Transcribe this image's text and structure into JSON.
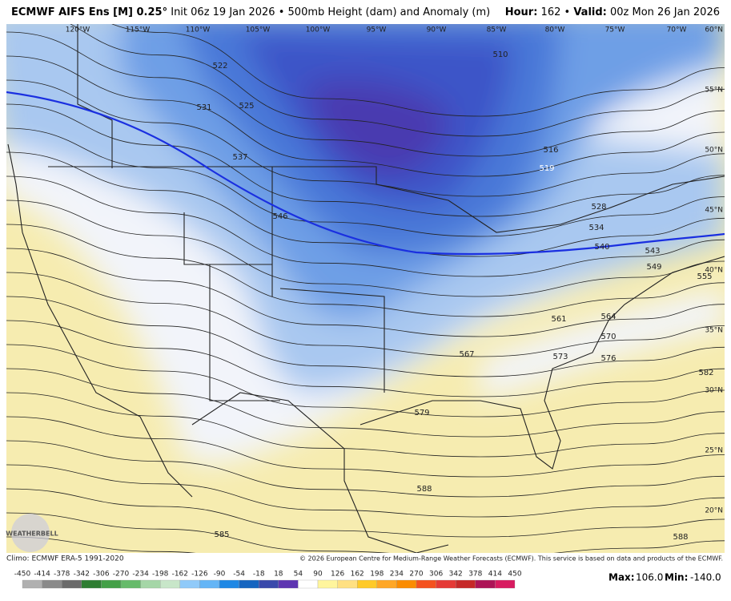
{
  "header": {
    "title": "ECMWF AIFS Ens [M] 0.25°",
    "init": "Init 06z 19 Jan 2026",
    "separator": "•",
    "product": "500mb Height (dam) and Anomaly (m)",
    "hour_label": "Hour:",
    "hour": "162",
    "valid_label": "Valid:",
    "valid": "00z Mon 26 Jan 2026"
  },
  "map": {
    "longitude_labels": [
      "120°W",
      "115°W",
      "110°W",
      "105°W",
      "100°W",
      "95°W",
      "90°W",
      "85°W",
      "80°W",
      "75°W",
      "70°W"
    ],
    "latitude_labels": [
      "60°N",
      "55°N",
      "50°N",
      "45°N",
      "40°N",
      "35°N",
      "30°N",
      "25°N",
      "20°N"
    ],
    "contour_labels": [
      "510",
      "522",
      "525",
      "531",
      "537",
      "546",
      "516",
      "519",
      "528",
      "534",
      "540",
      "543",
      "549",
      "555",
      "561",
      "564",
      "567",
      "570",
      "573",
      "576",
      "579",
      "582",
      "585",
      "588",
      "588"
    ],
    "logo": "WEATHERBELL"
  },
  "footer": {
    "climo": "Climo: ECMWF ERA-5 1991-2020",
    "copyright": "© 2026 European Centre for Medium-Range Weather Forecasts (ECMWF). This service is based on data and products of the ECMWF.",
    "colorbar_labels": [
      "-450",
      "-414",
      "-378",
      "-342",
      "-306",
      "-270",
      "-234",
      "-198",
      "-162",
      "-126",
      "-90",
      "-54",
      "-18",
      "18",
      "54",
      "90",
      "126",
      "162",
      "198",
      "234",
      "270",
      "306",
      "342",
      "378",
      "414",
      "450"
    ],
    "max_label": "Max:",
    "max": "106.0",
    "min_label": "Min:",
    "min": "-140.0"
  }
}
